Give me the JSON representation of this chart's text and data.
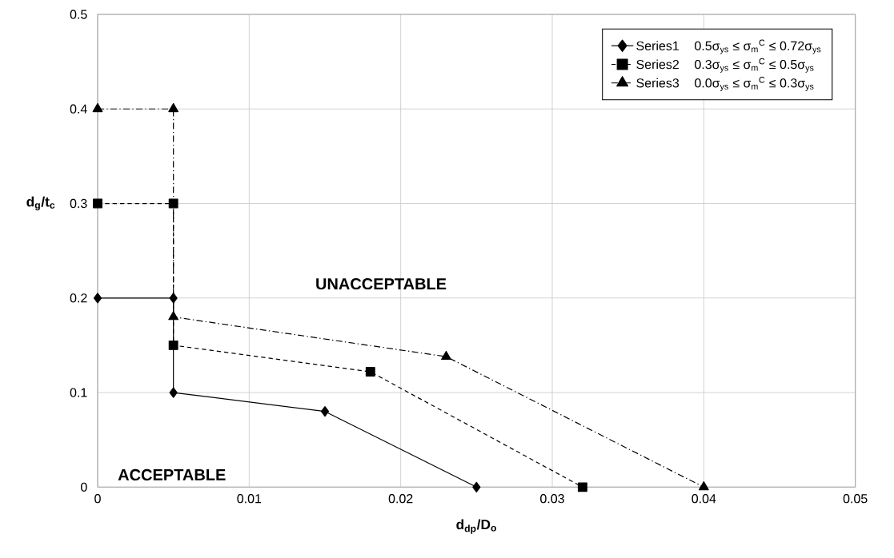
{
  "chart_data": {
    "type": "line",
    "xlabel": "**d$_{dp}$/D$_{o}$**",
    "ylabel": "**d$_{g}$/t$_{c}$**",
    "xlim": [
      0,
      0.05
    ],
    "ylim": [
      0,
      0.5
    ],
    "xticks": [
      0,
      0.01,
      0.02,
      0.03,
      0.04,
      0.05
    ],
    "yticks": [
      0,
      0.1,
      0.2,
      0.3,
      0.4,
      0.5
    ],
    "grid": true,
    "legend": "top right",
    "series": [
      {
        "name": "Series1",
        "color": "#000000",
        "marker": "diamond",
        "line_style": "solid",
        "x": [
          0,
          0.005,
          0.005,
          0.015,
          0.025
        ],
        "values": [
          0.2,
          0.2,
          0.1,
          0.08,
          0
        ]
      },
      {
        "name": "Series2",
        "color": "#000000",
        "marker": "square",
        "line_style": "dashed",
        "x": [
          0,
          0.005,
          0.005,
          0.018,
          0.032
        ],
        "values": [
          0.3,
          0.3,
          0.15,
          0.122,
          0
        ]
      },
      {
        "name": "Series3",
        "color": "#000000",
        "marker": "triangle",
        "line_style": "dashdot",
        "x": [
          0,
          0.005,
          0.005,
          0.023,
          0.04
        ],
        "values": [
          0.4,
          0.4,
          0.18,
          0.138,
          0
        ]
      }
    ],
    "annotations": [
      "0.5σ$_{ys}$ ≤ σ$_{m}$$^{C}$ ≤ 0.72σ$_{ys}$",
      "0.3σ$_{ys}$ ≤ σ$_{m}$$^{C}$ ≤ 0.5σ$_{ys}$",
      "0.0σ$_{ys}$ ≤ σ$_{m}$$^{C}$ ≤ 0.3σ$_{ys}$",
      "UNACCEPTABLE",
      "ACCEPTABLE"
    ]
  }
}
